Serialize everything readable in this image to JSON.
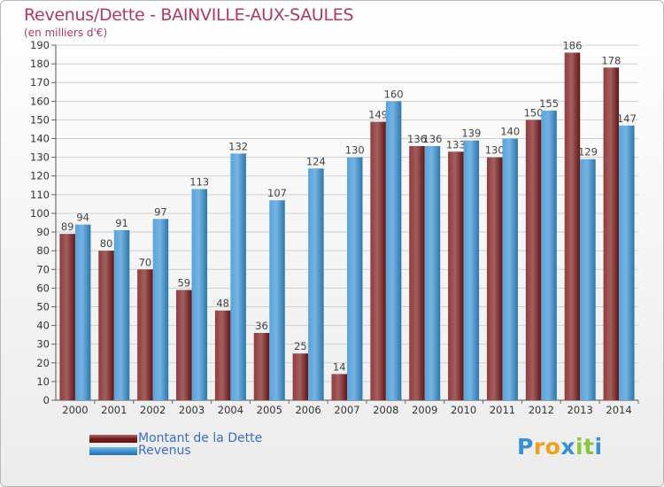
{
  "title": "Revenus/Dette - BAINVILLE-AUX-SAULES",
  "subtitle": "(en milliers d'€)",
  "chart_data": {
    "type": "bar",
    "categories": [
      "2000",
      "2001",
      "2002",
      "2003",
      "2004",
      "2005",
      "2006",
      "2007",
      "2008",
      "2009",
      "2010",
      "2011",
      "2012",
      "2013",
      "2014"
    ],
    "series": [
      {
        "name": "Montant de la Dette",
        "color": "#7b1a1a",
        "values": [
          89,
          80,
          70,
          59,
          48,
          36,
          25,
          14,
          149,
          136,
          133,
          130,
          150,
          186,
          178
        ]
      },
      {
        "name": "Revenus",
        "color": "#3a93d6",
        "values": [
          94,
          91,
          97,
          113,
          132,
          107,
          124,
          130,
          160,
          136,
          139,
          140,
          155,
          129,
          147
        ]
      }
    ],
    "ylim": [
      0,
      190
    ],
    "ytick_step": 10,
    "grid": true
  },
  "legend": {
    "items": [
      {
        "label": "Montant de la Dette",
        "color": "#7b1a1a"
      },
      {
        "label": "Revenus",
        "color": "#3a93d6"
      }
    ]
  },
  "logo": {
    "letters": [
      "P",
      "r",
      "o",
      "x",
      "i",
      "t",
      "i"
    ],
    "colors": [
      "#3b8fd4",
      "#f0a020",
      "#f0a020",
      "#3b8fd4",
      "#8cc63f",
      "#8cc63f",
      "#3b8fd4"
    ]
  }
}
